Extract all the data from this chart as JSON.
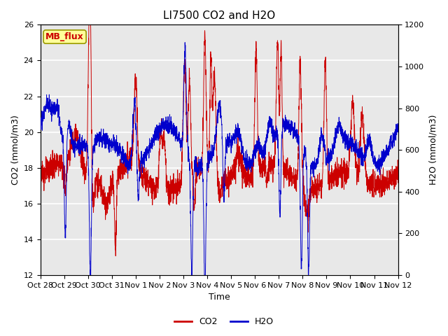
{
  "title": "LI7500 CO2 and H2O",
  "xlabel": "Time",
  "ylabel_left": "CO2 (mmol/m3)",
  "ylabel_right": "H2O (mmol/m3)",
  "ylim_left": [
    12,
    26
  ],
  "ylim_right": [
    0,
    1200
  ],
  "yticks_left": [
    12,
    14,
    16,
    18,
    20,
    22,
    24,
    26
  ],
  "yticks_right": [
    0,
    200,
    400,
    600,
    800,
    1000,
    1200
  ],
  "co2_color": "#cc0000",
  "h2o_color": "#0000cc",
  "legend_co2": "CO2",
  "legend_h2o": "H2O",
  "annotation_text": "MB_flux",
  "annotation_bg": "#ffff99",
  "annotation_border": "#cccc00",
  "fig_bg_color": "#ffffff",
  "plot_bg_color": "#e8e8e8",
  "grid_color": "#ffffff",
  "title_fontsize": 11,
  "label_fontsize": 9,
  "tick_fontsize": 8,
  "legend_fontsize": 9,
  "num_points": 3000,
  "x_start_day": 0,
  "x_end_day": 15.0,
  "xtick_positions": [
    0,
    1,
    2,
    3,
    4,
    5,
    6,
    7,
    8,
    9,
    10,
    11,
    12,
    13,
    14,
    15
  ],
  "xtick_labels": [
    "Oct 28",
    "Oct 29",
    "Oct 30",
    "Oct 31",
    "Nov 1",
    "Nov 2",
    "Nov 3",
    "Nov 4",
    "Nov 5",
    "Nov 6",
    "Nov 7",
    "Nov 8",
    "Nov 9",
    "Nov 10",
    "Nov 11",
    "Nov 12"
  ]
}
